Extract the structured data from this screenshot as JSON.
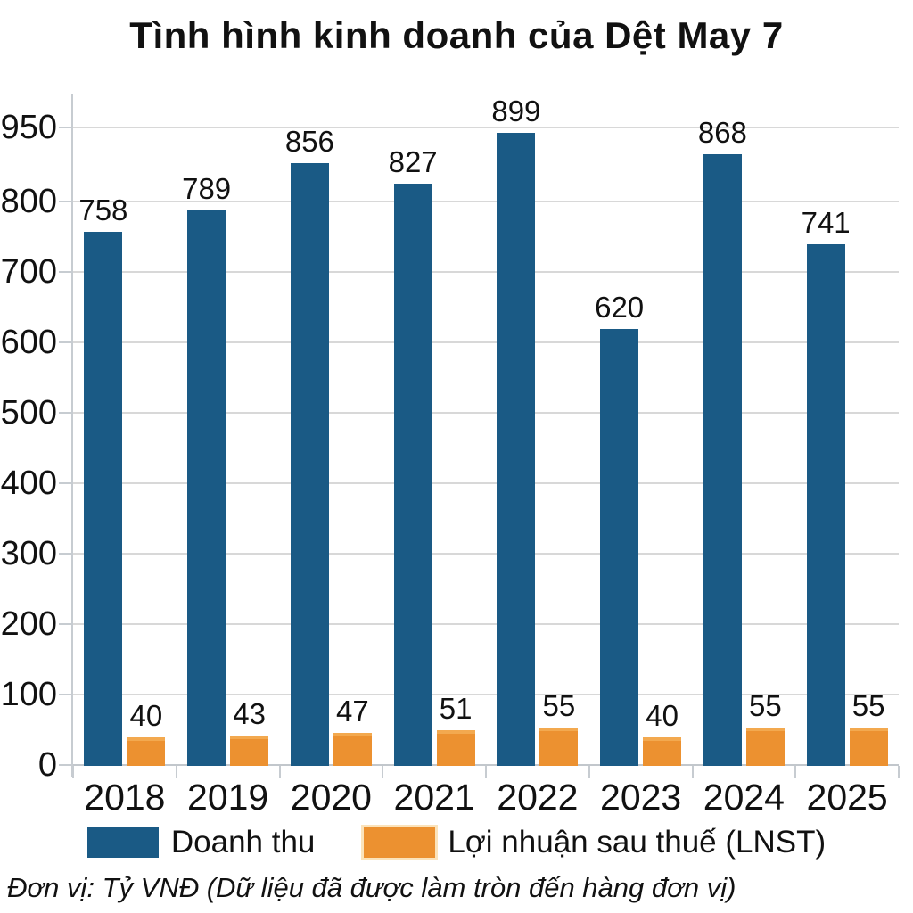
{
  "title": "Tình hình kinh doanh của Dệt May 7",
  "footnote": "Đơn vị: Tỷ VNĐ (Dữ liệu đã được làm tròn đến hàng đơn vị)",
  "colors": {
    "revenue": "#1A5A85",
    "profit": "#EC9130",
    "gridline": "#d8d8d8",
    "text": "#111111",
    "background": "#ffffff"
  },
  "legend": {
    "items": [
      {
        "label": "Doanh thu",
        "series": "revenue"
      },
      {
        "label": "Lợi nhuận sau thuế (LNST)",
        "series": "profit"
      }
    ],
    "position": "bottom"
  },
  "chart_data": {
    "type": "bar",
    "title": "Tình hình kinh doanh của Dệt May 7",
    "categories": [
      "2018",
      "2019",
      "2020",
      "2021",
      "2022",
      "2023",
      "2024",
      "2025"
    ],
    "series": [
      {
        "name": "Doanh thu",
        "key": "revenue",
        "color": "#1A5A85",
        "values": [
          758,
          789,
          856,
          827,
          899,
          620,
          868,
          741
        ]
      },
      {
        "name": "Lợi nhuận sau thuế (LNST)",
        "key": "profit",
        "color": "#EC9130",
        "values": [
          40,
          43,
          47,
          51,
          55,
          40,
          55,
          55
        ]
      }
    ],
    "bar_labels": true,
    "xlabel": "",
    "ylabel": "",
    "ylim": [
      0,
      950
    ],
    "yticks": [
      0,
      100,
      200,
      300,
      400,
      500,
      600,
      700,
      800,
      950
    ],
    "grid": true,
    "legend_position": "bottom",
    "unit_note": "Tỷ VNĐ"
  }
}
